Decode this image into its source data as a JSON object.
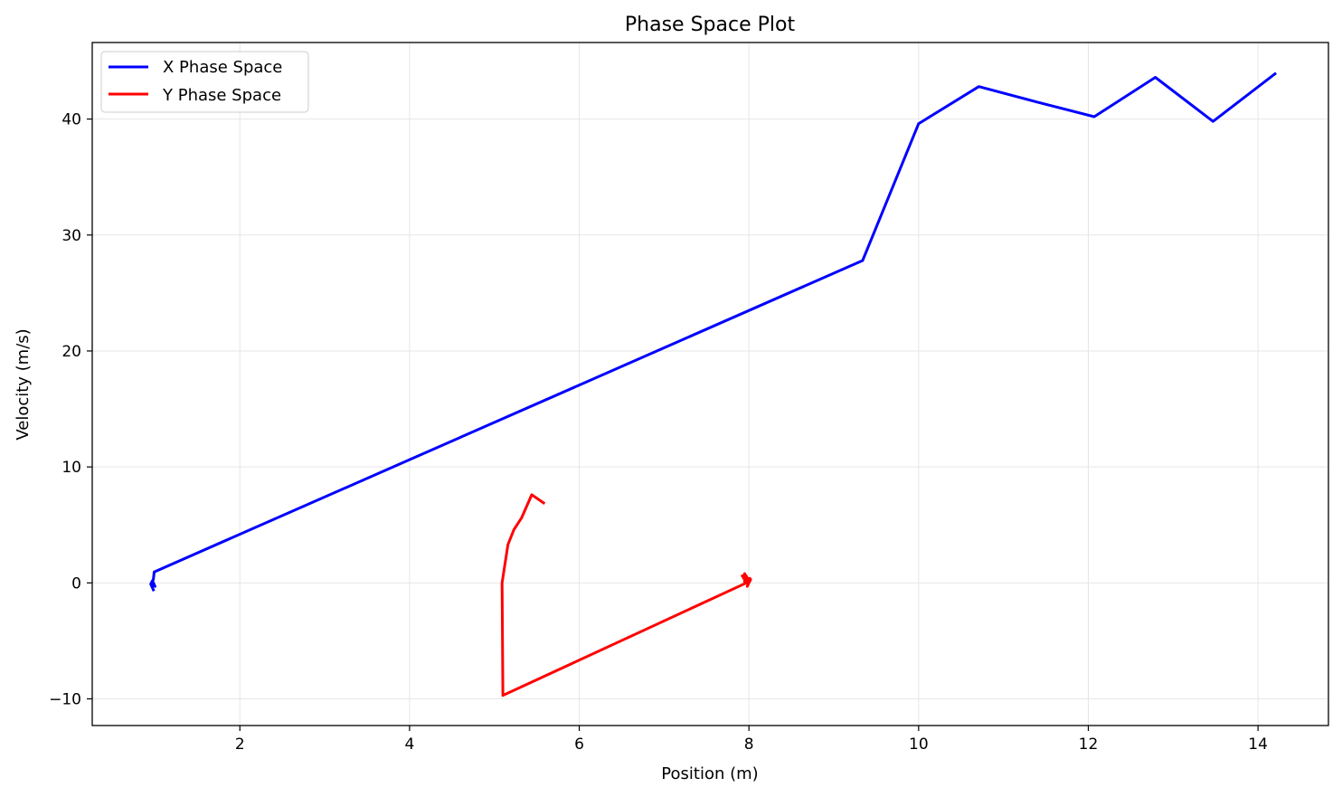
{
  "chart_data": {
    "type": "line",
    "title": "Phase Space Plot",
    "xlabel": "Position (m)",
    "ylabel": "Velocity (m/s)",
    "xlim": [
      0.26,
      14.83
    ],
    "ylim": [
      -12.3,
      46.6
    ],
    "xticks": [
      2,
      4,
      6,
      8,
      10,
      12,
      14
    ],
    "yticks": [
      -10,
      0,
      10,
      20,
      30,
      40
    ],
    "xtick_labels": [
      "2",
      "4",
      "6",
      "8",
      "10",
      "12",
      "14"
    ],
    "ytick_labels": [
      "−10",
      "0",
      "10",
      "20",
      "30",
      "40"
    ],
    "grid": true,
    "legend_position": "top-left",
    "series": [
      {
        "name": "X Phase Space",
        "color": "#0000ff",
        "x": [
          0.98,
          0.95,
          0.97,
          1.0,
          0.96,
          0.98,
          0.99,
          9.34,
          10.0,
          10.71,
          11.38,
          12.07,
          12.79,
          13.47,
          14.2
        ],
        "y": [
          -0.6,
          -0.1,
          0.2,
          -0.3,
          0.0,
          0.3,
          0.95,
          27.8,
          39.6,
          42.8,
          41.5,
          40.2,
          43.6,
          39.8,
          43.9
        ]
      },
      {
        "name": "Y Phase Space",
        "color": "#ff0000",
        "x": [
          5.58,
          5.44,
          5.32,
          5.23,
          5.16,
          5.09,
          5.1,
          7.97,
          7.93,
          7.95,
          8.0,
          7.92,
          8.02,
          7.98,
          8.01,
          7.95
        ],
        "y": [
          6.9,
          7.6,
          5.6,
          4.6,
          3.3,
          0.0,
          -9.7,
          0.0,
          0.5,
          0.8,
          0.2,
          0.6,
          0.3,
          -0.3,
          0.4,
          0.1
        ]
      }
    ]
  }
}
